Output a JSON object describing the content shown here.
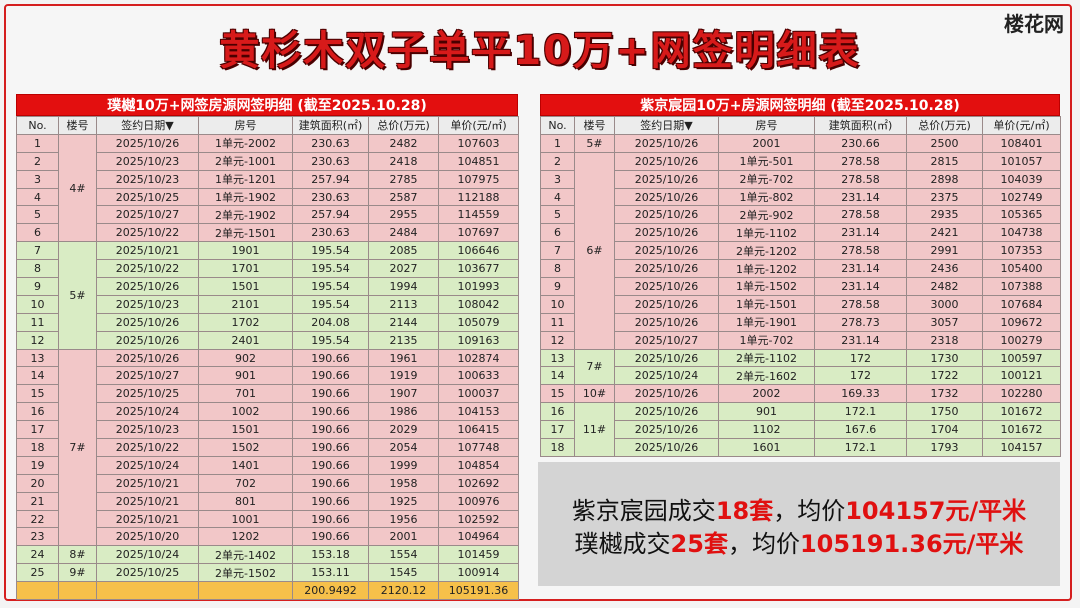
{
  "main_title": "黄杉木双子单平10万+网签明细表",
  "logo_text": "楼花网",
  "headers": {
    "no": "No.",
    "building": "楼号",
    "date": "签约日期▼",
    "unit": "房号",
    "area": "建筑面积(㎡)",
    "total": "总价(万元)",
    "unit_price": "单价(元/㎡)"
  },
  "left_table": {
    "title": "璞樾10万+网签房源网签明细 (截至2025.10.28)",
    "groups": [
      {
        "building": "4#",
        "color": "pink",
        "rows": [
          [
            "1",
            "2025/10/26",
            "1单元-2002",
            "230.63",
            "2482",
            "107603"
          ],
          [
            "2",
            "2025/10/23",
            "2单元-1001",
            "230.63",
            "2418",
            "104851"
          ],
          [
            "3",
            "2025/10/23",
            "1单元-1201",
            "257.94",
            "2785",
            "107975"
          ],
          [
            "4",
            "2025/10/25",
            "1单元-1902",
            "230.63",
            "2587",
            "112188"
          ],
          [
            "5",
            "2025/10/27",
            "2单元-1902",
            "257.94",
            "2955",
            "114559"
          ],
          [
            "6",
            "2025/10/22",
            "2单元-1501",
            "230.63",
            "2484",
            "107697"
          ]
        ]
      },
      {
        "building": "5#",
        "color": "green",
        "rows": [
          [
            "7",
            "2025/10/21",
            "1901",
            "195.54",
            "2085",
            "106646"
          ],
          [
            "8",
            "2025/10/22",
            "1701",
            "195.54",
            "2027",
            "103677"
          ],
          [
            "9",
            "2025/10/26",
            "1501",
            "195.54",
            "1994",
            "101993"
          ],
          [
            "10",
            "2025/10/23",
            "2101",
            "195.54",
            "2113",
            "108042"
          ],
          [
            "11",
            "2025/10/26",
            "1702",
            "204.08",
            "2144",
            "105079"
          ],
          [
            "12",
            "2025/10/26",
            "2401",
            "195.54",
            "2135",
            "109163"
          ]
        ]
      },
      {
        "building": "7#",
        "color": "pink",
        "rows": [
          [
            "13",
            "2025/10/26",
            "902",
            "190.66",
            "1961",
            "102874"
          ],
          [
            "14",
            "2025/10/27",
            "901",
            "190.66",
            "1919",
            "100633"
          ],
          [
            "15",
            "2025/10/25",
            "701",
            "190.66",
            "1907",
            "100037"
          ],
          [
            "16",
            "2025/10/24",
            "1002",
            "190.66",
            "1986",
            "104153"
          ],
          [
            "17",
            "2025/10/23",
            "1501",
            "190.66",
            "2029",
            "106415"
          ],
          [
            "18",
            "2025/10/22",
            "1502",
            "190.66",
            "2054",
            "107748"
          ],
          [
            "19",
            "2025/10/24",
            "1401",
            "190.66",
            "1999",
            "104854"
          ],
          [
            "20",
            "2025/10/21",
            "702",
            "190.66",
            "1958",
            "102692"
          ],
          [
            "21",
            "2025/10/21",
            "801",
            "190.66",
            "1925",
            "100976"
          ],
          [
            "22",
            "2025/10/21",
            "1001",
            "190.66",
            "1956",
            "102592"
          ],
          [
            "23",
            "2025/10/20",
            "1202",
            "190.66",
            "2001",
            "104964"
          ]
        ]
      },
      {
        "building": "8#",
        "color": "green",
        "rows": [
          [
            "24",
            "2025/10/24",
            "2单元-1402",
            "153.18",
            "1554",
            "101459"
          ]
        ]
      },
      {
        "building": "9#",
        "color": "green",
        "rows": [
          [
            "25",
            "2025/10/25",
            "2单元-1502",
            "153.11",
            "1545",
            "100914"
          ]
        ]
      }
    ],
    "totals": {
      "area": "200.9492",
      "total": "2120.12",
      "unit_price": "105191.36"
    }
  },
  "right_table": {
    "title": "紫京宸园10万+房源网签明细 (截至2025.10.28)",
    "groups": [
      {
        "building": "5#",
        "color": "pink",
        "rows": [
          [
            "1",
            "2025/10/26",
            "2001",
            "230.66",
            "2500",
            "108401"
          ]
        ]
      },
      {
        "building": "6#",
        "color": "pink",
        "rows": [
          [
            "2",
            "2025/10/26",
            "1单元-501",
            "278.58",
            "2815",
            "101057"
          ],
          [
            "3",
            "2025/10/26",
            "2单元-702",
            "278.58",
            "2898",
            "104039"
          ],
          [
            "4",
            "2025/10/26",
            "1单元-802",
            "231.14",
            "2375",
            "102749"
          ],
          [
            "5",
            "2025/10/26",
            "2单元-902",
            "278.58",
            "2935",
            "105365"
          ],
          [
            "6",
            "2025/10/26",
            "1单元-1102",
            "231.14",
            "2421",
            "104738"
          ],
          [
            "7",
            "2025/10/26",
            "2单元-1202",
            "278.58",
            "2991",
            "107353"
          ],
          [
            "8",
            "2025/10/26",
            "1单元-1202",
            "231.14",
            "2436",
            "105400"
          ],
          [
            "9",
            "2025/10/26",
            "1单元-1502",
            "231.14",
            "2482",
            "107388"
          ],
          [
            "10",
            "2025/10/26",
            "1单元-1501",
            "278.58",
            "3000",
            "107684"
          ],
          [
            "11",
            "2025/10/26",
            "1单元-1901",
            "278.73",
            "3057",
            "109672"
          ],
          [
            "12",
            "2025/10/27",
            "1单元-702",
            "231.14",
            "2318",
            "100279"
          ]
        ]
      },
      {
        "building": "7#",
        "color": "green",
        "rows": [
          [
            "13",
            "2025/10/26",
            "2单元-1102",
            "172",
            "1730",
            "100597"
          ],
          [
            "14",
            "2025/10/24",
            "2单元-1602",
            "172",
            "1722",
            "100121"
          ]
        ]
      },
      {
        "building": "10#",
        "color": "pink",
        "rows": [
          [
            "15",
            "2025/10/26",
            "2002",
            "169.33",
            "1732",
            "102280"
          ]
        ]
      },
      {
        "building": "11#",
        "color": "green",
        "rows": [
          [
            "16",
            "2025/10/26",
            "901",
            "172.1",
            "1750",
            "101672"
          ],
          [
            "17",
            "2025/10/26",
            "1102",
            "167.6",
            "1704",
            "101672"
          ],
          [
            "18",
            "2025/10/26",
            "1601",
            "172.1",
            "1793",
            "104157"
          ]
        ]
      }
    ]
  },
  "summary": {
    "line1_prefix": "紫京宸园成交",
    "line1_count": "18套",
    "line1_mid": "，均价",
    "line1_price": "104157元/平米",
    "line2_prefix": "璞樾成交",
    "line2_count": "25套",
    "line2_mid": "，均价",
    "line2_price": "105191.36元/平米"
  }
}
